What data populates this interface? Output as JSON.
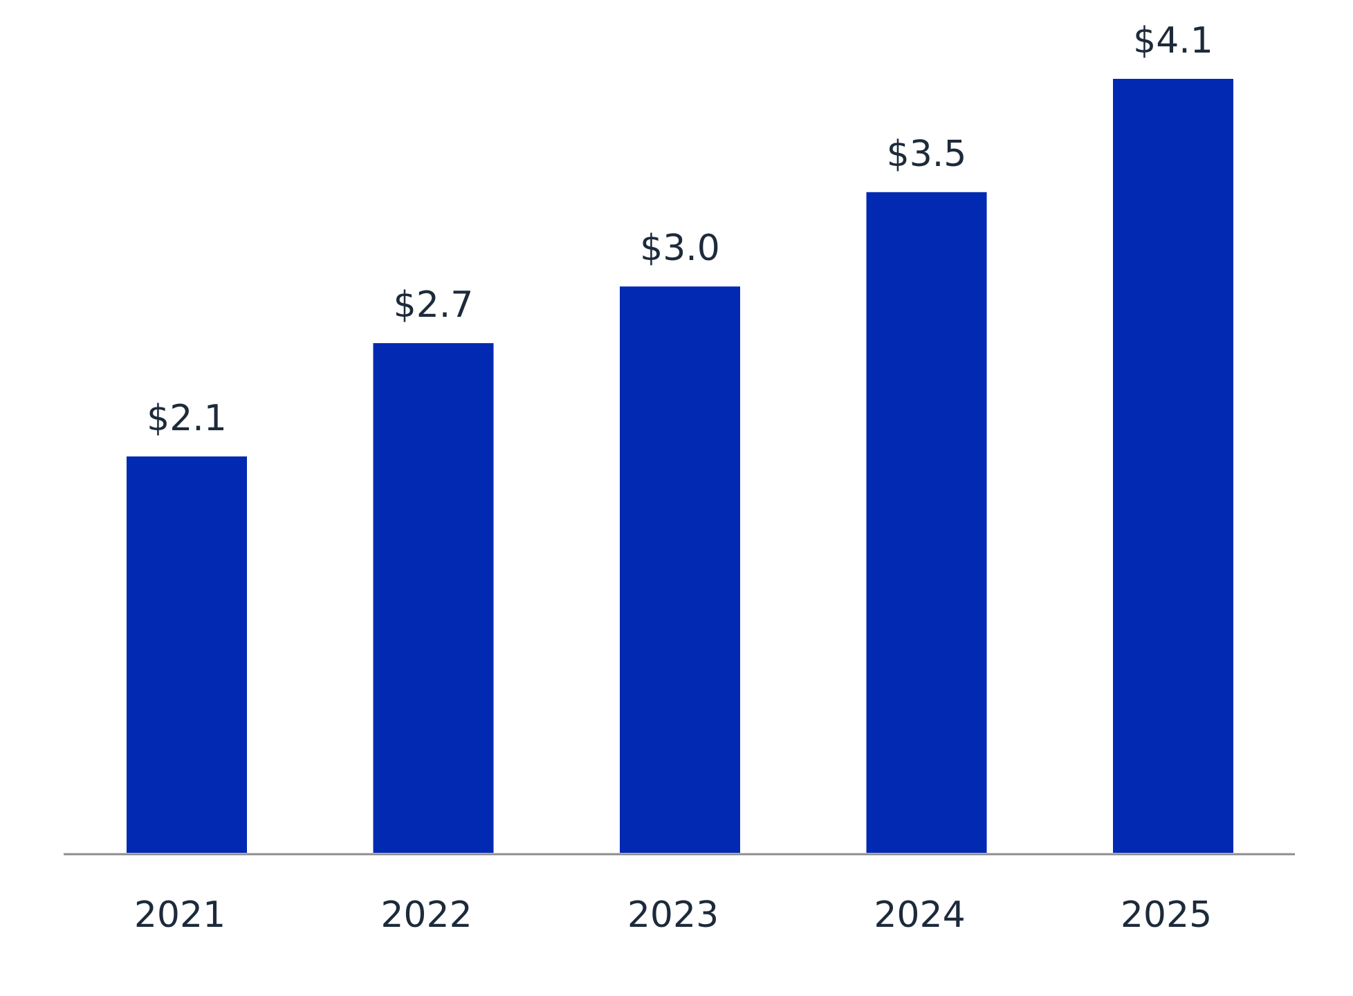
{
  "chart_data": {
    "type": "bar",
    "categories": [
      "2021",
      "2022",
      "2023",
      "2024",
      "2025"
    ],
    "values": [
      2.1,
      2.7,
      3.0,
      3.5,
      4.1
    ],
    "value_labels": [
      "$2.1",
      "$2.7",
      "$3.0",
      "$3.5",
      "$4.1"
    ],
    "title": "",
    "xlabel": "",
    "ylabel": "",
    "ylim": [
      0,
      4.1
    ],
    "grid": false,
    "legend": "none",
    "bar_color": "#0229b1",
    "axis_color": "#8c8c8c",
    "text_color": "#1d2a3a"
  }
}
